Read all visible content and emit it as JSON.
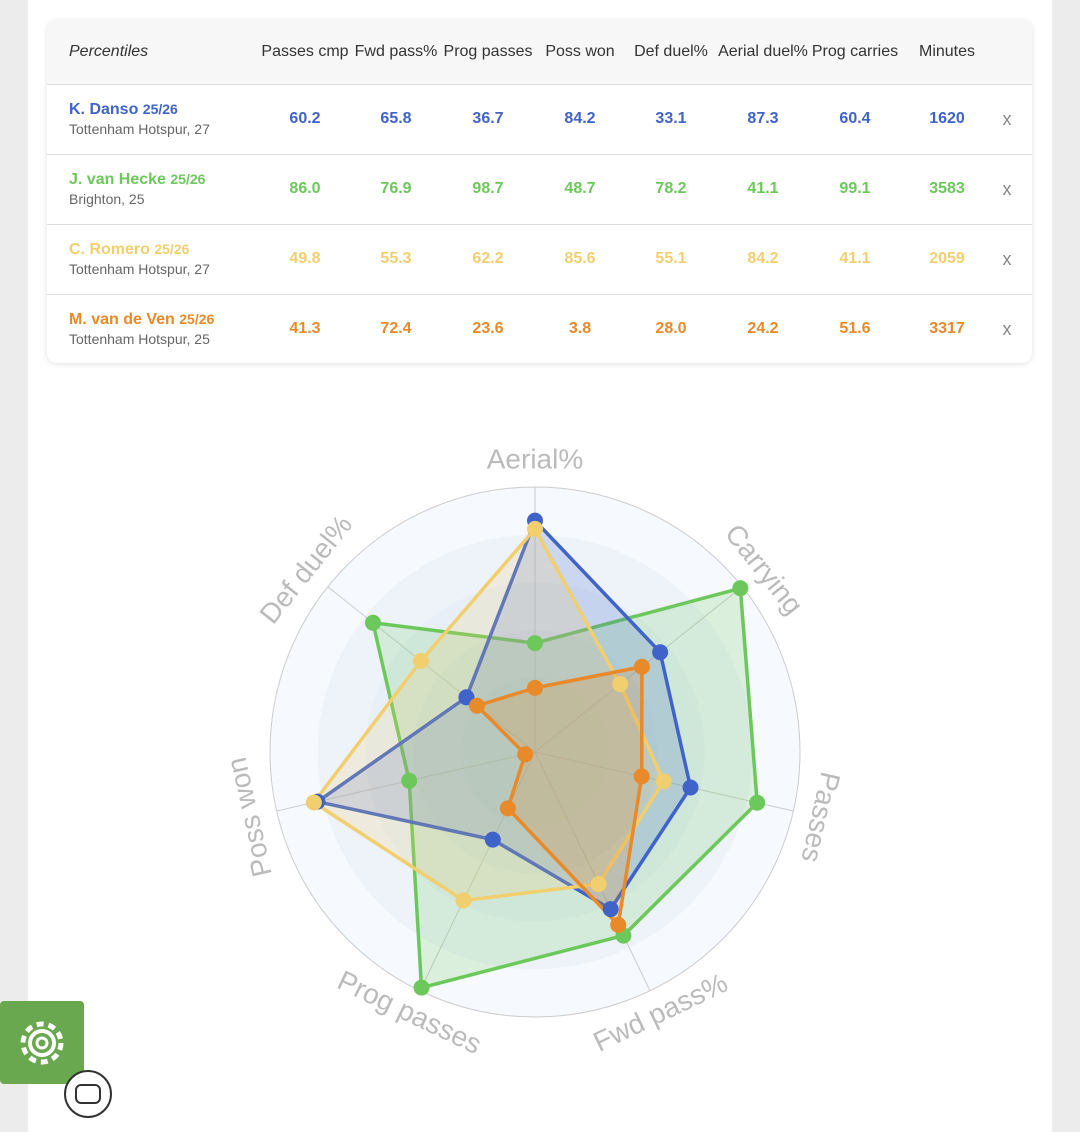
{
  "table": {
    "header": [
      "Percentiles",
      "Passes cmp",
      "Fwd pass%",
      "Prog passes",
      "Poss won",
      "Def duel%",
      "Aerial duel%",
      "Prog carries",
      "Minutes"
    ],
    "rows": [
      {
        "name": "K. Danso",
        "season": "25/26",
        "club": "Tottenham Hotspur, 27",
        "color": "#3f63c8",
        "values": [
          "60.2",
          "65.8",
          "36.7",
          "84.2",
          "33.1",
          "87.3",
          "60.4",
          "1620"
        ],
        "remove": "x"
      },
      {
        "name": "J. van Hecke",
        "season": "25/26",
        "club": "Brighton, 25",
        "color": "#6cc85a",
        "values": [
          "86.0",
          "76.9",
          "98.7",
          "48.7",
          "78.2",
          "41.1",
          "99.1",
          "3583"
        ],
        "remove": "x"
      },
      {
        "name": "C. Romero",
        "season": "25/26",
        "club": "Tottenham Hotspur, 27",
        "color": "#f2cf6e",
        "values": [
          "49.8",
          "55.3",
          "62.2",
          "85.6",
          "55.1",
          "84.2",
          "41.1",
          "2059"
        ],
        "remove": "x"
      },
      {
        "name": "M. van de Ven",
        "season": "25/26",
        "club": "Tottenham Hotspur, 25",
        "color": "#e8892a",
        "values": [
          "41.3",
          "72.4",
          "23.6",
          "3.8",
          "28.0",
          "24.2",
          "51.6",
          "3317"
        ],
        "remove": "x"
      }
    ]
  },
  "chart_data": {
    "type": "radar",
    "axes": [
      "Aerial%",
      "Carrying",
      "Passes",
      "Fwd pass%",
      "Prog passes",
      "Poss won",
      "Def duel%"
    ],
    "rlim": [
      0,
      100
    ],
    "series": [
      {
        "color": "#6cc85a",
        "values": [
          41.1,
          99.1,
          86.0,
          76.9,
          98.7,
          48.7,
          78.2
        ]
      },
      {
        "color": "#3f63c8",
        "values": [
          87.3,
          60.4,
          60.2,
          65.8,
          36.7,
          84.2,
          33.1
        ]
      },
      {
        "color": "#f2cf6e",
        "values": [
          84.2,
          41.1,
          49.8,
          55.3,
          62.2,
          85.6,
          55.1
        ]
      },
      {
        "color": "#e8892a",
        "values": [
          24.2,
          51.6,
          41.3,
          72.4,
          23.6,
          3.8,
          28.0
        ]
      }
    ]
  }
}
